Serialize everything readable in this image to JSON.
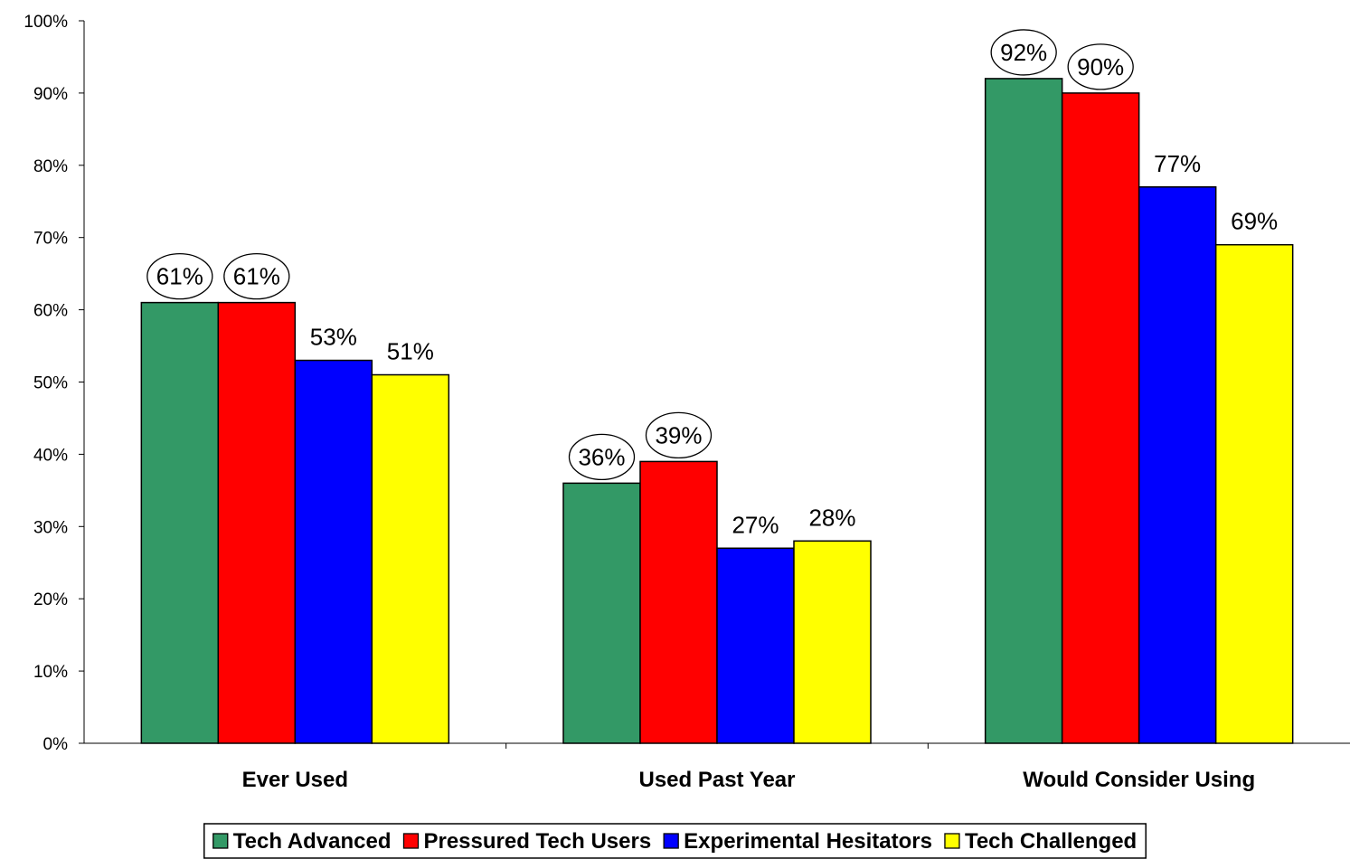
{
  "chart_data": {
    "type": "bar",
    "title": "",
    "xlabel": "",
    "ylabel": "",
    "ylim": [
      0,
      100
    ],
    "yticks": [
      0,
      10,
      20,
      30,
      40,
      50,
      60,
      70,
      80,
      90,
      100
    ],
    "ytick_format": "{v}%",
    "categories": [
      "Ever Used",
      "Used Past Year",
      "Would Consider Using"
    ],
    "series": [
      {
        "name": "Tech Advanced",
        "color": "#339966",
        "values": [
          61,
          36,
          92
        ],
        "circled": [
          true,
          true,
          true
        ]
      },
      {
        "name": "Pressured Tech Users",
        "color": "#ff0000",
        "values": [
          61,
          39,
          90
        ],
        "circled": [
          true,
          true,
          true
        ]
      },
      {
        "name": "Experimental Hesitators",
        "color": "#0000ff",
        "values": [
          53,
          27,
          77
        ],
        "circled": [
          false,
          false,
          false
        ]
      },
      {
        "name": "Tech Challenged",
        "color": "#ffff00",
        "values": [
          51,
          28,
          69
        ],
        "circled": [
          false,
          false,
          false
        ]
      }
    ],
    "data_label_format": "{v}%",
    "grid": false,
    "legend_position": "bottom"
  }
}
